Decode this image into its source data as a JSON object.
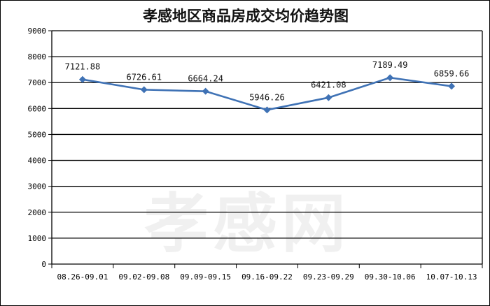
{
  "chart_data": {
    "type": "line",
    "title": "孝感地区商品房成交均价趋势图",
    "xlabel": "",
    "ylabel": "",
    "categories": [
      "08.26-09.01",
      "09.02-09.08",
      "09.09-09.15",
      "09.16-09.22",
      "09.23-09.29",
      "09.30-10.06",
      "10.07-10.13"
    ],
    "series": [
      {
        "name": "均价",
        "values": [
          7121.88,
          6726.61,
          6664.24,
          5946.26,
          6421.08,
          7189.49,
          6859.66
        ],
        "color": "#3f72b5"
      }
    ],
    "data_labels": [
      "7121.88",
      "6726.61",
      "6664.24",
      "5946.26",
      "6421.08",
      "7189.49",
      "6859.66"
    ],
    "ylim": [
      0,
      9000
    ],
    "yticks": [
      "0",
      "1000",
      "2000",
      "3000",
      "4000",
      "5000",
      "6000",
      "7000",
      "8000",
      "9000"
    ],
    "grid": true,
    "legend": "none"
  },
  "watermark": "孝感网"
}
